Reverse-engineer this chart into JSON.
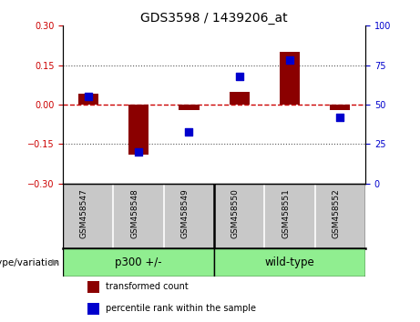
{
  "title": "GDS3598 / 1439206_at",
  "samples": [
    "GSM458547",
    "GSM458548",
    "GSM458549",
    "GSM458550",
    "GSM458551",
    "GSM458552"
  ],
  "red_bars": [
    0.04,
    -0.19,
    -0.02,
    0.05,
    0.2,
    -0.02
  ],
  "blue_squares_pct": [
    55,
    20,
    33,
    68,
    78,
    42
  ],
  "ylim_left": [
    -0.3,
    0.3
  ],
  "ylim_right": [
    0,
    100
  ],
  "yticks_left": [
    -0.3,
    -0.15,
    0,
    0.15,
    0.3
  ],
  "yticks_right": [
    0,
    25,
    50,
    75,
    100
  ],
  "hlines_dotted": [
    0.15,
    -0.15
  ],
  "hline_zero": 0,
  "group_boundary": 2.5,
  "bar_color": "#8B0000",
  "square_color": "#0000CD",
  "bar_width": 0.4,
  "zero_line_color": "#CC0000",
  "dotted_line_color": "#555555",
  "bg_color": "#FFFFFF",
  "plot_bg_color": "#FFFFFF",
  "xlabels_bg_color": "#C8C8C8",
  "tick_label_color_left": "#CC0000",
  "tick_label_color_right": "#0000CD",
  "green_color": "#90EE90",
  "group0_label": "p300 +/-",
  "group1_label": "wild-type",
  "genotype_label": "genotype/variation",
  "legend_red": "transformed count",
  "legend_blue": "percentile rank within the sample",
  "title_fontsize": 10,
  "tick_fontsize": 7,
  "sample_fontsize": 6.5,
  "group_fontsize": 8.5,
  "legend_fontsize": 7,
  "genotype_fontsize": 7.5
}
